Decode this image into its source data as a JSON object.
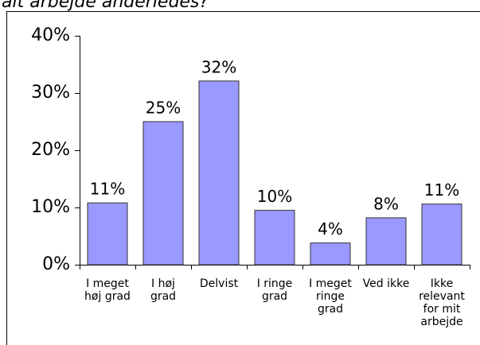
{
  "chart_data": {
    "type": "bar",
    "title": "alt arbejde anderledes?",
    "categories": [
      [
        "I meget",
        "høj grad"
      ],
      [
        "I høj",
        "grad"
      ],
      [
        "Delvist"
      ],
      [
        "I ringe",
        "grad"
      ],
      [
        "I meget",
        "ringe",
        "grad"
      ],
      [
        "Ved ikke"
      ],
      [
        "Ikke",
        "relevant",
        "for mit",
        "arbejde"
      ]
    ],
    "values": [
      10.8,
      25,
      32.1,
      9.5,
      3.8,
      8.2,
      10.6
    ],
    "value_labels": [
      "11%",
      "25%",
      "32%",
      "10%",
      "4%",
      "8%",
      "11%"
    ],
    "color": "#9999ff",
    "ylim": [
      0,
      40
    ],
    "yticks": [
      {
        "value": 0,
        "label": "0%"
      },
      {
        "value": 10,
        "label": "10%"
      },
      {
        "value": 20,
        "label": "20%"
      },
      {
        "value": 30,
        "label": "30%"
      },
      {
        "value": 40,
        "label": "40%"
      }
    ]
  }
}
